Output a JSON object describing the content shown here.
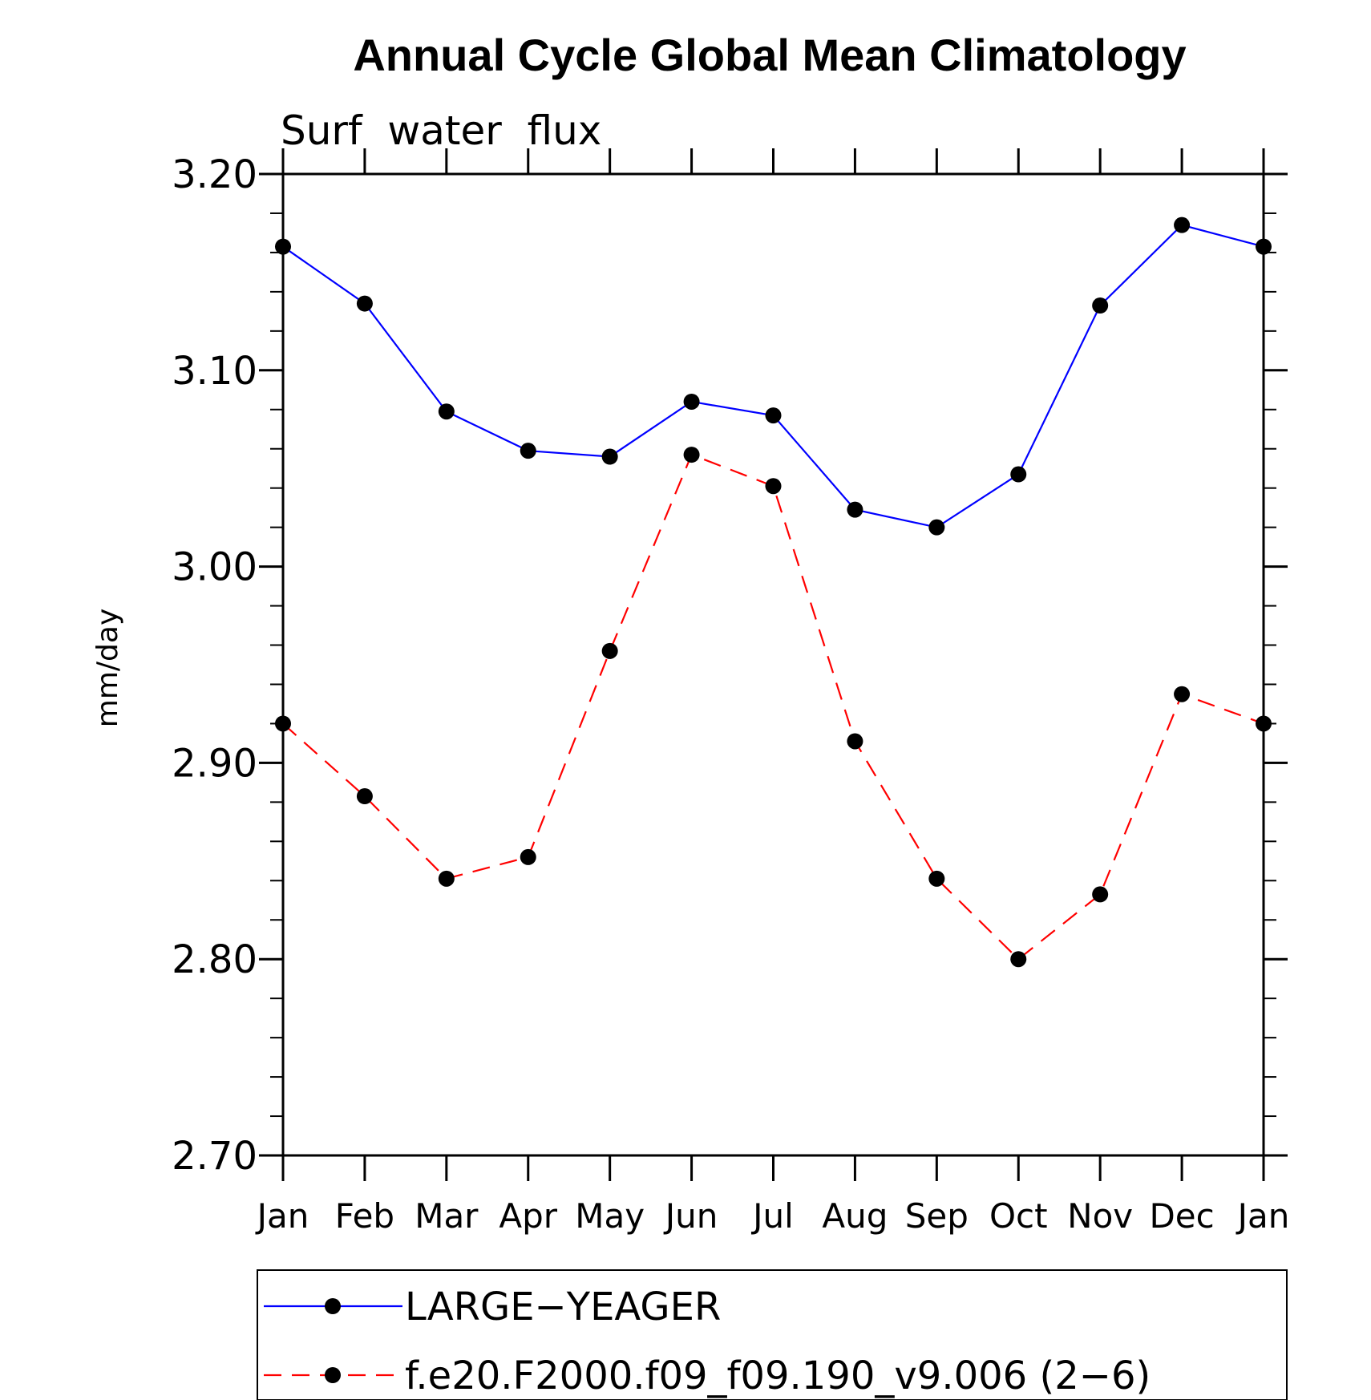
{
  "chart_data": {
    "type": "line",
    "title": "Annual Cycle Global Mean Climatology",
    "subtitle": "Surf  water  flux",
    "ylabel": "mm/day",
    "xlabel": "",
    "categories": [
      "Jan",
      "Feb",
      "Mar",
      "Apr",
      "May",
      "Jun",
      "Jul",
      "Aug",
      "Sep",
      "Oct",
      "Nov",
      "Dec",
      "Jan"
    ],
    "ylim": [
      2.7,
      3.2
    ],
    "yticks": [
      "3.20",
      "3.10",
      "3.00",
      "2.90",
      "2.80",
      "2.70"
    ],
    "grid": false,
    "legend_position": "bottom",
    "series": [
      {
        "name": "LARGE−YEAGER",
        "color": "#0000ff",
        "style": "solid",
        "marker": "filled-circle",
        "values": [
          3.163,
          3.134,
          3.079,
          3.059,
          3.056,
          3.084,
          3.077,
          3.029,
          3.02,
          3.047,
          3.133,
          3.174,
          3.163
        ]
      },
      {
        "name": "f.e20.F2000.f09_f09.190_v9.006 (2−6)",
        "color": "#ff0000",
        "style": "dashed",
        "marker": "filled-circle",
        "values": [
          2.92,
          2.883,
          2.841,
          2.852,
          2.957,
          3.057,
          3.041,
          2.911,
          2.841,
          2.8,
          2.833,
          2.935,
          2.92
        ]
      }
    ]
  }
}
